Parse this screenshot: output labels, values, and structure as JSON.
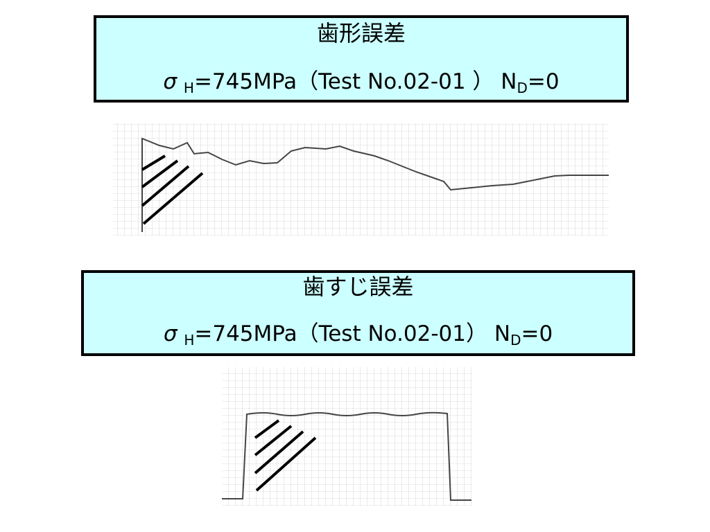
{
  "header": {
    "title": "歯形誤差",
    "symbol": "σ",
    "symbol_sub": "H",
    "condition": "=745MPa（Test No.02-01 ）",
    "n": "N",
    "n_sub": "D",
    "n_value": "=0"
  },
  "section": {
    "title": "歯すじ誤差",
    "symbol": "σ",
    "symbol_sub": "H",
    "condition": "=745MPa（Test No.02-01）",
    "n": "N",
    "n_sub": "D",
    "n_value": "=0"
  }
}
